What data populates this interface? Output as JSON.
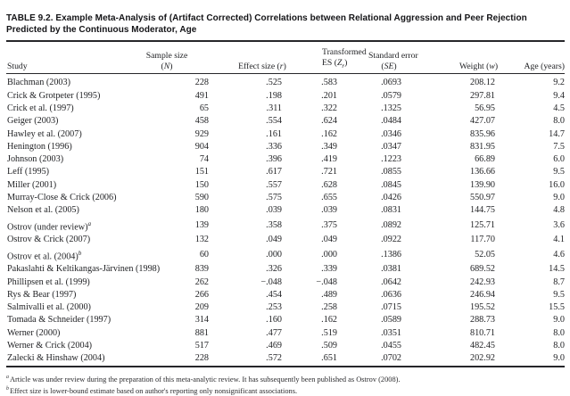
{
  "title": {
    "text": "TABLE 9.2. Example Meta-Analysis of (Artifact Corrected) Correlations between Relational Aggression and Peer Rejection Predicted by the Continuous Moderator, Age"
  },
  "colors": {
    "background": "#ffffff",
    "text": "#222326",
    "title_text": "#141417",
    "rules": "#26262a"
  },
  "table": {
    "columns": [
      {
        "id": "study",
        "lines": [
          [
            {
              "t": "Study"
            }
          ]
        ]
      },
      {
        "id": "n",
        "lines": [
          [
            {
              "t": "Sample size"
            }
          ],
          [
            {
              "t": "("
            },
            {
              "t": "N",
              "s": "i"
            },
            {
              "t": ")"
            }
          ]
        ]
      },
      {
        "id": "r",
        "lines": [
          [
            {
              "t": "Effect size ("
            },
            {
              "t": "r",
              "s": "i"
            },
            {
              "t": ")"
            }
          ]
        ]
      },
      {
        "id": "zr",
        "lines": [
          [
            {
              "t": "Transformed"
            }
          ],
          [
            {
              "t": "ES ("
            },
            {
              "t": "Z",
              "s": "i"
            },
            {
              "t": "r",
              "s": "isub"
            },
            {
              "t": ")"
            }
          ]
        ]
      },
      {
        "id": "se",
        "lines": [
          [
            {
              "t": "Standard error"
            }
          ],
          [
            {
              "t": "("
            },
            {
              "t": "SE",
              "s": "i"
            },
            {
              "t": ")"
            }
          ]
        ]
      },
      {
        "id": "w",
        "lines": [
          [
            {
              "t": "Weight ("
            },
            {
              "t": "w",
              "s": "i"
            },
            {
              "t": ")"
            }
          ]
        ]
      },
      {
        "id": "age",
        "lines": [
          [
            {
              "t": "Age (years)"
            }
          ]
        ]
      }
    ],
    "rows": [
      {
        "study": "Blachman (2003)",
        "marker": "",
        "n": "228",
        "r": ".525",
        "zr": ".583",
        "se": ".0693",
        "w": "208.12",
        "age": "9.2"
      },
      {
        "study": "Crick & Grotpeter (1995)",
        "marker": "",
        "n": "491",
        "r": ".198",
        "zr": ".201",
        "se": ".0579",
        "w": "297.81",
        "age": "9.4"
      },
      {
        "study": "Crick et al. (1997)",
        "marker": "",
        "n": "65",
        "r": ".311",
        "zr": ".322",
        "se": ".1325",
        "w": "56.95",
        "age": "4.5"
      },
      {
        "study": "Geiger (2003)",
        "marker": "",
        "n": "458",
        "r": ".554",
        "zr": ".624",
        "se": ".0484",
        "w": "427.07",
        "age": "8.0"
      },
      {
        "study": "Hawley et al. (2007)",
        "marker": "",
        "n": "929",
        "r": ".161",
        "zr": ".162",
        "se": ".0346",
        "w": "835.96",
        "age": "14.7"
      },
      {
        "study": "Henington (1996)",
        "marker": "",
        "n": "904",
        "r": ".336",
        "zr": ".349",
        "se": ".0347",
        "w": "831.95",
        "age": "7.5"
      },
      {
        "study": "Johnson (2003)",
        "marker": "",
        "n": "74",
        "r": ".396",
        "zr": ".419",
        "se": ".1223",
        "w": "66.89",
        "age": "6.0"
      },
      {
        "study": "Leff (1995)",
        "marker": "",
        "n": "151",
        "r": ".617",
        "zr": ".721",
        "se": ".0855",
        "w": "136.66",
        "age": "9.5"
      },
      {
        "study": "Miller (2001)",
        "marker": "",
        "n": "150",
        "r": ".557",
        "zr": ".628",
        "se": ".0845",
        "w": "139.90",
        "age": "16.0"
      },
      {
        "study": "Murray-Close & Crick (2006)",
        "marker": "",
        "n": "590",
        "r": ".575",
        "zr": ".655",
        "se": ".0426",
        "w": "550.97",
        "age": "9.0"
      },
      {
        "study": "Nelson et al. (2005)",
        "marker": "",
        "n": "180",
        "r": ".039",
        "zr": ".039",
        "se": ".0831",
        "w": "144.75",
        "age": "4.8"
      },
      {
        "study": "Ostrov (under review)",
        "marker": "a",
        "n": "139",
        "r": ".358",
        "zr": ".375",
        "se": ".0892",
        "w": "125.71",
        "age": "3.6"
      },
      {
        "study": "Ostrov & Crick (2007)",
        "marker": "",
        "n": "132",
        "r": ".049",
        "zr": ".049",
        "se": ".0922",
        "w": "117.70",
        "age": "4.1"
      },
      {
        "study": "Ostrov et al. (2004)",
        "marker": "b",
        "n": "60",
        "r": ".000",
        "zr": ".000",
        "se": ".1386",
        "w": "52.05",
        "age": "4.6"
      },
      {
        "study": "Pakaslahti & Keltikangas-Järvinen (1998)",
        "marker": "",
        "n": "839",
        "r": ".326",
        "zr": ".339",
        "se": ".0381",
        "w": "689.52",
        "age": "14.5"
      },
      {
        "study": "Phillipsen et al. (1999)",
        "marker": "",
        "n": "262",
        "r": "−.048",
        "zr": "−.048",
        "se": ".0642",
        "w": "242.93",
        "age": "8.7"
      },
      {
        "study": "Rys & Bear (1997)",
        "marker": "",
        "n": "266",
        "r": ".454",
        "zr": ".489",
        "se": ".0636",
        "w": "246.94",
        "age": "9.5"
      },
      {
        "study": "Salmivalli et al. (2000)",
        "marker": "",
        "n": "209",
        "r": ".253",
        "zr": ".258",
        "se": ".0715",
        "w": "195.52",
        "age": "15.5"
      },
      {
        "study": "Tomada & Schneider (1997)",
        "marker": "",
        "n": "314",
        "r": ".160",
        "zr": ".162",
        "se": ".0589",
        "w": "288.73",
        "age": "9.0"
      },
      {
        "study": "Werner (2000)",
        "marker": "",
        "n": "881",
        "r": ".477",
        "zr": ".519",
        "se": ".0351",
        "w": "810.71",
        "age": "8.0"
      },
      {
        "study": "Werner & Crick (2004)",
        "marker": "",
        "n": "517",
        "r": ".469",
        "zr": ".509",
        "se": ".0455",
        "w": "482.45",
        "age": "8.0"
      },
      {
        "study": "Zalecki & Hinshaw (2004)",
        "marker": "",
        "n": "228",
        "r": ".572",
        "zr": ".651",
        "se": ".0702",
        "w": "202.92",
        "age": "9.0"
      }
    ]
  },
  "footnotes": [
    {
      "marker": "a",
      "text": "Article was under review during the preparation of this meta-analytic review. It has subsequently been published as Ostrov (2008)."
    },
    {
      "marker": "b",
      "text": "Effect size is lower-bound estimate based on author's reporting only nonsignificant associations."
    }
  ]
}
